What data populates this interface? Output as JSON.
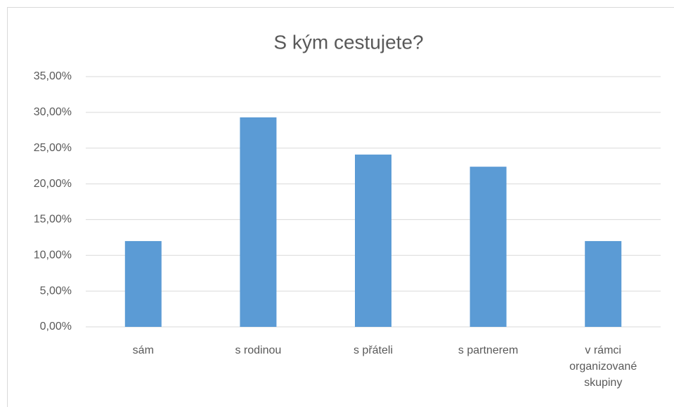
{
  "chart_data": {
    "type": "bar",
    "title": "S kým cestujete?",
    "categories": [
      "sám",
      "s rodinou",
      "s přáteli",
      "s partnerem",
      "v rámci organizované skupiny"
    ],
    "values": [
      12.0,
      29.3,
      24.1,
      22.4,
      12.0
    ],
    "color": "#5b9bd5",
    "ylim": [
      0,
      35
    ],
    "yticks": [
      {
        "value": 0,
        "label": "0,00%"
      },
      {
        "value": 5,
        "label": "5,00%"
      },
      {
        "value": 10,
        "label": "10,00%"
      },
      {
        "value": 15,
        "label": "15,00%"
      },
      {
        "value": 20,
        "label": "20,00%"
      },
      {
        "value": 25,
        "label": "25,00%"
      },
      {
        "value": 30,
        "label": "30,00%"
      },
      {
        "value": 35,
        "label": "35,00%"
      }
    ],
    "grid": true
  }
}
